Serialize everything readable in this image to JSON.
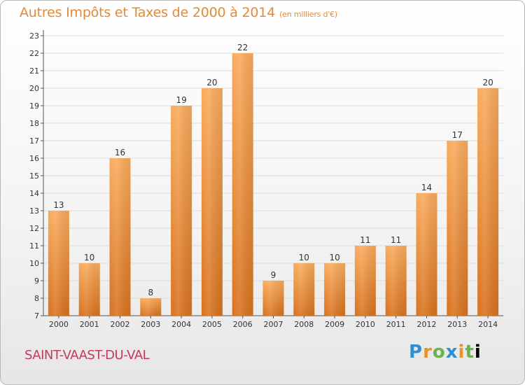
{
  "title": "Autres Impôts et Taxes de 2000 à 2014",
  "subtitle": "(en milliers d'€)",
  "commune": "SAINT-VAAST-DU-VAL",
  "logo_letters": [
    "P",
    "r",
    "o",
    "x",
    "i",
    "t",
    "i"
  ],
  "colors": {
    "bar_light": "#f8a95a",
    "bar_dark": "#d97420",
    "title": "#e08a3a",
    "commune": "#c23a5c"
  },
  "chart_data": {
    "type": "bar",
    "categories": [
      "2000",
      "2001",
      "2002",
      "2003",
      "2004",
      "2005",
      "2006",
      "2007",
      "2008",
      "2009",
      "2010",
      "2011",
      "2012",
      "2013",
      "2014"
    ],
    "values": [
      13,
      10,
      16,
      8,
      19,
      20,
      22,
      9,
      10,
      10,
      11,
      11,
      14,
      17,
      20
    ],
    "ylim": [
      7,
      23
    ],
    "yticks": [
      7,
      8,
      9,
      10,
      11,
      12,
      13,
      14,
      15,
      16,
      17,
      18,
      19,
      20,
      21,
      22,
      23
    ],
    "grid": true,
    "xlabel": "",
    "ylabel": ""
  }
}
